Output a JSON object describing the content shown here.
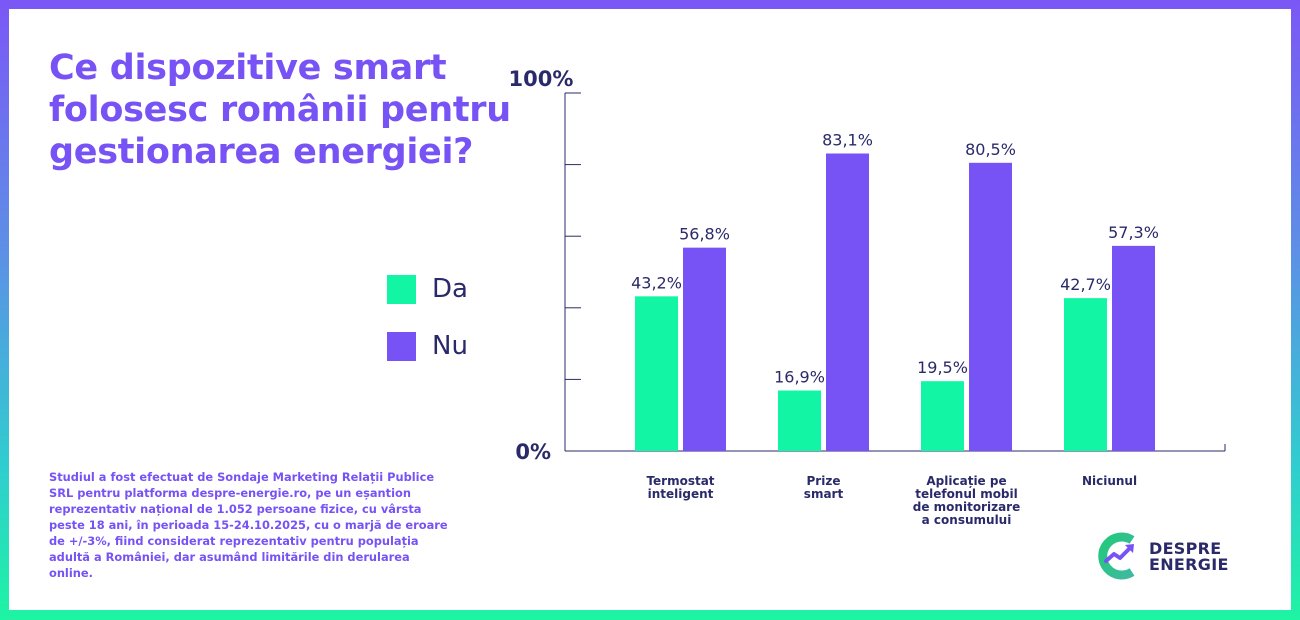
{
  "colors": {
    "da": "#11f5a5",
    "nu": "#7752f5",
    "title": "#7752f5",
    "axis": "#2a2a6a",
    "text": "#2a2a6a"
  },
  "title": "Ce dispozitive smart folosesc românii pentru gestionarea energiei?",
  "legend": [
    {
      "label": "Da",
      "color": "#11f5a5"
    },
    {
      "label": "Nu",
      "color": "#7752f5"
    }
  ],
  "note": "Studiul a fost efectuat de Sondaje Marketing Relații Publice SRL pentru platforma despre-energie.ro, pe un eșantion reprezentativ național de 1.052 persoane fizice, cu vârsta peste 18 ani, în perioada 15-24.10.2025, cu o marjă de eroare de +/-3%, fiind considerat reprezentativ pentru populația adultă a României, dar asumând limitările din derularea online.",
  "logo": {
    "line1": "DESPRE",
    "line2": "ENERGIE"
  },
  "chart_data": {
    "type": "bar",
    "title": "Ce dispozitive smart folosesc românii pentru gestionarea energiei?",
    "categories": [
      [
        "Termostat",
        "inteligent"
      ],
      [
        "Prize",
        "smart"
      ],
      [
        "Aplicație pe",
        "telefonul mobil",
        "de monitorizare",
        "a consumului"
      ],
      [
        "Niciunul"
      ]
    ],
    "series": [
      {
        "name": "Da",
        "color": "#11f5a5",
        "values": [
          43.2,
          16.9,
          19.5,
          42.7
        ],
        "labels": [
          "43,2%",
          "16,9%",
          "19,5%",
          "42,7%"
        ]
      },
      {
        "name": "Nu",
        "color": "#7752f5",
        "values": [
          56.8,
          83.1,
          80.5,
          57.3
        ],
        "labels": [
          "56,8%",
          "83,1%",
          "80,5%",
          "57,3%"
        ]
      }
    ],
    "ylim": [
      0,
      100
    ],
    "ytick_labels": {
      "min": "0%",
      "max": "100%"
    },
    "ytick_count": 5,
    "xlabel": "",
    "ylabel": "",
    "legend_position": "left",
    "grid": false
  }
}
